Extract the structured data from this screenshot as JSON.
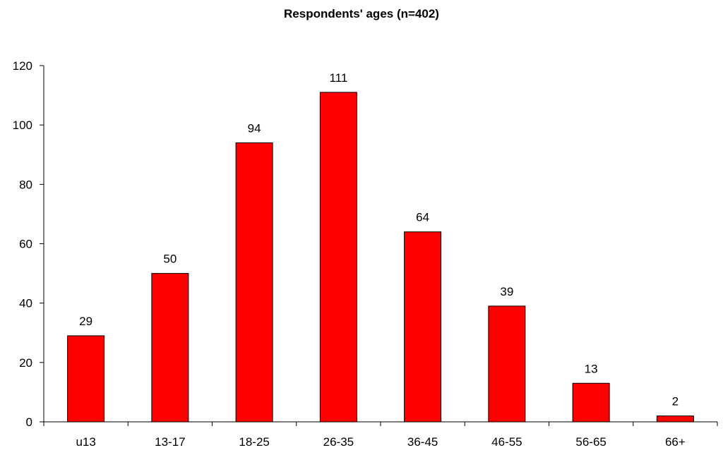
{
  "chart_data": {
    "type": "bar",
    "title": "Respondents' ages (n=402)",
    "xlabel": "",
    "ylabel": "",
    "categories": [
      "u13",
      "13-17",
      "18-25",
      "26-35",
      "36-45",
      "46-55",
      "56-65",
      "66+"
    ],
    "values": [
      29,
      50,
      94,
      111,
      64,
      39,
      13,
      2
    ],
    "ylim": [
      0,
      120
    ],
    "yticks": [
      0,
      20,
      40,
      60,
      80,
      100,
      120
    ],
    "grid": false,
    "legend": "none",
    "data_labels": true,
    "colors": {
      "bar_fill": "#ff0000",
      "bar_stroke": "#000000",
      "axis": "#000000",
      "text": "#000000"
    }
  }
}
